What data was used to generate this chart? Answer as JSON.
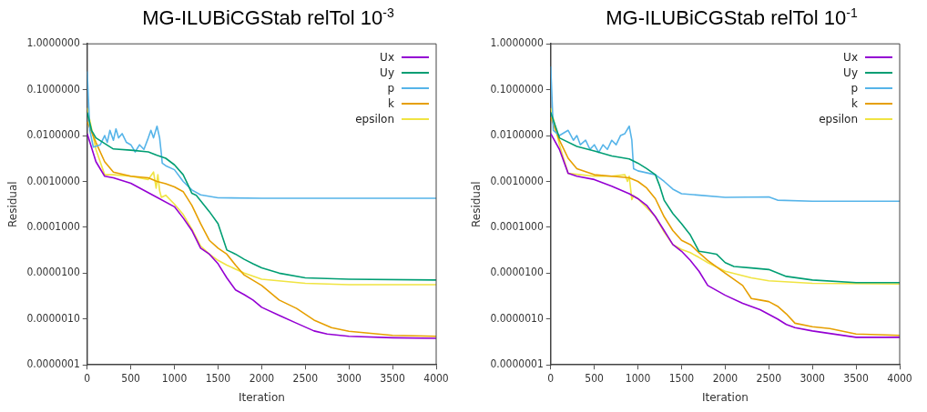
{
  "chart_data": [
    {
      "type": "line",
      "title": "MG-ILUBiCGStab relTol 10$^{-3}$",
      "xlabel": "Iteration",
      "ylabel": "Residual",
      "log": "y",
      "legend": "top right",
      "grid": false,
      "marker": "none",
      "line_style": "solid",
      "xlim": [
        0,
        4000
      ],
      "xticks": [
        0,
        500,
        1000,
        1500,
        2000,
        2500,
        3000,
        3500,
        4000
      ],
      "ylim": [
        1e-07,
        1
      ],
      "yticks": [
        {
          "value": 1e-07,
          "label": "0.0000001"
        },
        {
          "value": 1e-06,
          "label": "0.0000010"
        },
        {
          "value": 1e-05,
          "label": "0.0000100"
        },
        {
          "value": 0.0001,
          "label": "0.0001000"
        },
        {
          "value": 0.001,
          "label": "0.0010000"
        },
        {
          "value": 0.01,
          "label": "0.0100000"
        },
        {
          "value": 0.1,
          "label": "0.1000000"
        },
        {
          "value": 1,
          "label": "1.0000000"
        }
      ],
      "series": [
        {
          "name": "Ux",
          "color": "#9400d3",
          "x": [
            0,
            100,
            200,
            300,
            500,
            800,
            1000,
            1100,
            1200,
            1300,
            1400,
            1500,
            1600,
            1700,
            1800,
            1900,
            2000,
            2200,
            2400,
            2600,
            2750,
            3000,
            3500,
            4000
          ],
          "values": [
            0.011,
            0.0027,
            0.0013,
            0.0012,
            0.00091,
            0.00045,
            0.00028,
            0.00016,
            8.5e-05,
            3.5e-05,
            2.6e-05,
            1.6e-05,
            7.9e-06,
            4.3e-06,
            3.4e-06,
            2.6e-06,
            1.8e-06,
            1.2e-06,
            8.1e-07,
            5.5e-07,
            4.7e-07,
            4.2e-07,
            3.9e-07,
            3.8e-07
          ]
        },
        {
          "name": "Uy",
          "color": "#009e73",
          "x": [
            0,
            50,
            100,
            300,
            500,
            700,
            800,
            900,
            1000,
            1100,
            1150,
            1200,
            1250,
            1400,
            1500,
            1600,
            1700,
            1800,
            1900,
            2000,
            2200,
            2500,
            3000,
            4000
          ],
          "values": [
            0.032,
            0.013,
            0.0089,
            0.0051,
            0.0048,
            0.0044,
            0.0037,
            0.0032,
            0.0023,
            0.0014,
            0.00089,
            0.00055,
            0.0005,
            0.00022,
            0.00012,
            3.2e-05,
            2.6e-05,
            2e-05,
            1.6e-05,
            1.3e-05,
            1e-05,
            7.9e-06,
            7.4e-06,
            7.1e-06
          ]
        },
        {
          "name": "p",
          "color": "#56b4e9",
          "x": [
            0,
            30,
            70,
            150,
            200,
            230,
            260,
            300,
            330,
            360,
            400,
            450,
            500,
            550,
            600,
            650,
            700,
            730,
            760,
            800,
            830,
            850,
            860,
            900,
            1000,
            1100,
            1200,
            1300,
            1500,
            2000,
            4000
          ],
          "values": [
            0.25,
            0.013,
            0.0056,
            0.0063,
            0.01,
            0.0071,
            0.013,
            0.0079,
            0.014,
            0.0089,
            0.011,
            0.0071,
            0.0063,
            0.0044,
            0.0063,
            0.005,
            0.0089,
            0.013,
            0.0089,
            0.016,
            0.0089,
            0.004,
            0.0025,
            0.0022,
            0.0018,
            0.001,
            0.00065,
            0.00051,
            0.00044,
            0.00043,
            0.00043
          ]
        },
        {
          "name": "k",
          "color": "#e69f00",
          "x": [
            0,
            100,
            200,
            300,
            500,
            700,
            800,
            900,
            1000,
            1100,
            1200,
            1300,
            1400,
            1500,
            1600,
            1700,
            1800,
            2000,
            2200,
            2400,
            2600,
            2800,
            3000,
            3500,
            4000
          ],
          "values": [
            0.02,
            0.0071,
            0.0027,
            0.0016,
            0.0013,
            0.0012,
            0.001,
            0.00089,
            0.00076,
            0.0006,
            0.0003,
            0.00012,
            5.2e-05,
            3.5e-05,
            2.6e-05,
            1.5e-05,
            9.1e-06,
            5.4e-06,
            2.6e-06,
            1.7e-06,
            9.5e-07,
            6.5e-07,
            5.4e-07,
            4.4e-07,
            4.2e-07
          ]
        },
        {
          "name": "epsilon",
          "color": "#f0e442",
          "x": [
            0,
            100,
            200,
            300,
            500,
            700,
            760,
            790,
            810,
            830,
            850,
            900,
            1000,
            1100,
            1200,
            1300,
            1400,
            1500,
            1600,
            1800,
            2000,
            2500,
            3000,
            4000
          ],
          "values": [
            0.04,
            0.005,
            0.0014,
            0.0014,
            0.0013,
            0.0011,
            0.0016,
            0.00071,
            0.0014,
            0.00063,
            0.00045,
            0.0005,
            0.00032,
            0.00019,
            9.1e-05,
            3.9e-05,
            2.6e-05,
            1.9e-05,
            1.5e-05,
            1e-05,
            7.4e-06,
            6e-06,
            5.6e-06,
            5.6e-06
          ]
        }
      ]
    },
    {
      "type": "line",
      "title": "MG-ILUBiCGStab relTol 10$^{-1}$",
      "xlabel": "Iteration",
      "ylabel": "Residual",
      "log": "y",
      "legend": "top right",
      "grid": false,
      "marker": "none",
      "line_style": "solid",
      "xlim": [
        0,
        4000
      ],
      "xticks": [
        0,
        500,
        1000,
        1500,
        2000,
        2500,
        3000,
        3500,
        4000
      ],
      "ylim": [
        1e-07,
        1
      ],
      "yticks": [
        {
          "value": 1e-07,
          "label": "0.0000001"
        },
        {
          "value": 1e-06,
          "label": "0.0000010"
        },
        {
          "value": 1e-05,
          "label": "0.0000100"
        },
        {
          "value": 0.0001,
          "label": "0.0001000"
        },
        {
          "value": 0.001,
          "label": "0.0010000"
        },
        {
          "value": 0.01,
          "label": "0.0100000"
        },
        {
          "value": 0.1,
          "label": "0.1000000"
        },
        {
          "value": 1,
          "label": "1.0000000"
        }
      ],
      "series": [
        {
          "name": "Ux",
          "color": "#9400d3",
          "x": [
            0,
            100,
            200,
            300,
            500,
            700,
            900,
            1000,
            1100,
            1200,
            1300,
            1400,
            1500,
            1600,
            1700,
            1800,
            2000,
            2200,
            2400,
            2600,
            2700,
            2800,
            3000,
            3500,
            4000
          ],
          "values": [
            0.011,
            0.005,
            0.0015,
            0.0013,
            0.0011,
            0.00079,
            0.00054,
            0.00042,
            0.0003,
            0.00017,
            8.5e-05,
            4.2e-05,
            3e-05,
            1.9e-05,
            1.1e-05,
            5.4e-06,
            3.3e-06,
            2.2e-06,
            1.6e-06,
            1e-06,
            7.6e-07,
            6.5e-07,
            5.5e-07,
            4e-07,
            4e-07
          ]
        },
        {
          "name": "Uy",
          "color": "#009e73",
          "x": [
            0,
            100,
            300,
            500,
            700,
            900,
            1000,
            1100,
            1200,
            1250,
            1300,
            1400,
            1500,
            1600,
            1700,
            1800,
            1900,
            2000,
            2100,
            2300,
            2500,
            2700,
            3000,
            3500,
            4000
          ],
          "values": [
            0.032,
            0.0089,
            0.0058,
            0.0046,
            0.0036,
            0.0031,
            0.0025,
            0.0019,
            0.0014,
            0.00079,
            0.00039,
            0.0002,
            0.00012,
            6.8e-05,
            3e-05,
            2.8e-05,
            2.6e-05,
            1.7e-05,
            1.4e-05,
            1.3e-05,
            1.2e-05,
            8.5e-06,
            7.1e-06,
            6.2e-06,
            6.2e-06
          ]
        },
        {
          "name": "p",
          "color": "#56b4e9",
          "x": [
            0,
            30,
            100,
            200,
            260,
            300,
            340,
            400,
            450,
            500,
            550,
            600,
            650,
            700,
            750,
            800,
            850,
            900,
            930,
            950,
            1000,
            1200,
            1300,
            1400,
            1500,
            2000,
            2500,
            2600,
            3000,
            4000
          ],
          "values": [
            0.32,
            0.013,
            0.01,
            0.013,
            0.0079,
            0.01,
            0.0063,
            0.0079,
            0.005,
            0.0063,
            0.0043,
            0.0063,
            0.005,
            0.0079,
            0.0063,
            0.01,
            0.011,
            0.016,
            0.0079,
            0.0019,
            0.0017,
            0.0014,
            0.001,
            0.00068,
            0.00054,
            0.00045,
            0.00046,
            0.00039,
            0.00037,
            0.00037
          ]
        },
        {
          "name": "k",
          "color": "#e69f00",
          "x": [
            0,
            100,
            200,
            300,
            500,
            700,
            900,
            1000,
            1100,
            1200,
            1300,
            1400,
            1500,
            1600,
            1700,
            1800,
            2000,
            2200,
            2300,
            2400,
            2500,
            2600,
            2700,
            2800,
            3000,
            3200,
            3500,
            4000
          ],
          "values": [
            0.025,
            0.0079,
            0.0032,
            0.0019,
            0.0014,
            0.0013,
            0.0012,
            0.001,
            0.00072,
            0.00042,
            0.00017,
            8.5e-05,
            5.2e-05,
            4.2e-05,
            2.8e-05,
            1.9e-05,
            1e-05,
            5.4e-06,
            2.8e-06,
            2.6e-06,
            2.4e-06,
            1.9e-06,
            1.3e-06,
            8.1e-07,
            6.8e-07,
            6.2e-07,
            4.7e-07,
            4.4e-07
          ]
        },
        {
          "name": "epsilon",
          "color": "#f0e442",
          "x": [
            0,
            100,
            200,
            500,
            700,
            850,
            880,
            900,
            930,
            950,
            1000,
            1200,
            1300,
            1400,
            1500,
            1600,
            1700,
            1800,
            2000,
            2300,
            2500,
            3000,
            4000
          ],
          "values": [
            0.04,
            0.0063,
            0.0015,
            0.0013,
            0.0013,
            0.0014,
            0.001,
            0.0013,
            0.0004,
            0.00049,
            0.00042,
            0.00017,
            7.9e-05,
            4.2e-05,
            3.3e-05,
            2.8e-05,
            2.2e-05,
            1.7e-05,
            1.1e-05,
            7.9e-06,
            6.8e-06,
            6e-06,
            5.8e-06
          ]
        }
      ]
    }
  ]
}
